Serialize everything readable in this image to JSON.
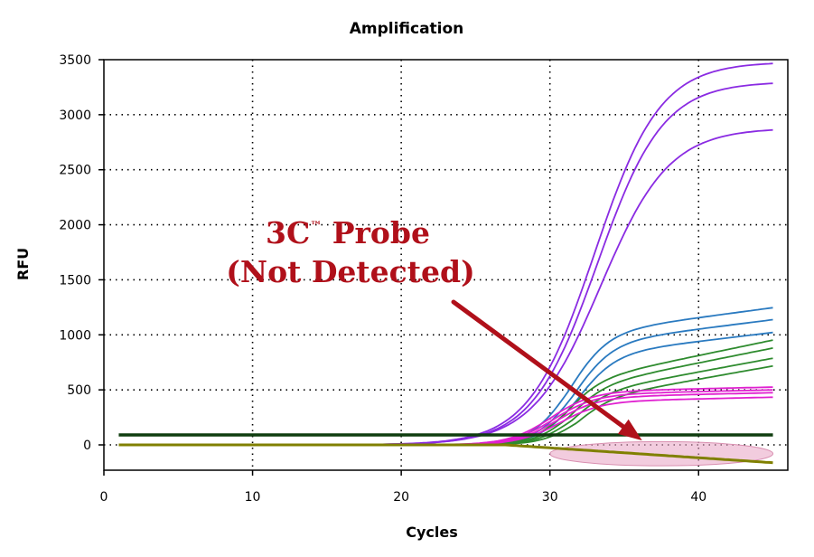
{
  "chart_data": {
    "type": "line",
    "title": "Amplification",
    "xlabel": "Cycles",
    "ylabel": "RFU",
    "xlim": [
      0,
      46
    ],
    "ylim": [
      -230,
      3500
    ],
    "xticks": [
      0,
      10,
      20,
      30,
      40
    ],
    "yticks": [
      0,
      500,
      1000,
      1500,
      2000,
      2500,
      3000,
      3500
    ],
    "grid": true,
    "threshold": {
      "value": 90,
      "color": "#0f3d0f"
    },
    "annotation": {
      "line1_main": "3C",
      "line1_sup": "™",
      "line1_rest": " Probe",
      "line2": "(Not Detected)",
      "color": "#b0101a",
      "arrow_to": {
        "x": 36.2,
        "y": 40
      }
    },
    "highlight": {
      "x_from": 30,
      "x_to": 45,
      "y_center": -80,
      "y_half_height": 110,
      "color": "#e8a3c3"
    },
    "series": [
      {
        "name": "purple-1",
        "color": "#8a2be2",
        "plateau": 3480,
        "midpoint": 33.0,
        "slope": 2.2,
        "drift": 0
      },
      {
        "name": "purple-2",
        "color": "#8a2be2",
        "plateau": 3300,
        "midpoint": 33.2,
        "slope": 2.2,
        "drift": 0
      },
      {
        "name": "purple-3",
        "color": "#8a2be2",
        "plateau": 2880,
        "midpoint": 33.4,
        "slope": 2.3,
        "drift": 0
      },
      {
        "name": "blue-1",
        "color": "#2a7ac0",
        "plateau": 1000,
        "midpoint": 31.3,
        "slope": 1.3,
        "drift": 18
      },
      {
        "name": "blue-2",
        "color": "#2a7ac0",
        "plateau": 910,
        "midpoint": 31.6,
        "slope": 1.3,
        "drift": 17
      },
      {
        "name": "blue-3",
        "color": "#2a7ac0",
        "plateau": 810,
        "midpoint": 31.8,
        "slope": 1.3,
        "drift": 16
      },
      {
        "name": "green-1",
        "color": "#2e8b2e",
        "plateau": 560,
        "midpoint": 31.0,
        "slope": 1.2,
        "drift": 28
      },
      {
        "name": "green-2",
        "color": "#2e8b2e",
        "plateau": 510,
        "midpoint": 31.3,
        "slope": 1.2,
        "drift": 27
      },
      {
        "name": "green-3",
        "color": "#2e8b2e",
        "plateau": 450,
        "midpoint": 31.5,
        "slope": 1.2,
        "drift": 25
      },
      {
        "name": "green-4",
        "color": "#2e8b2e",
        "plateau": 400,
        "midpoint": 31.8,
        "slope": 1.2,
        "drift": 24
      },
      {
        "name": "magenta-1",
        "color": "#e020d0",
        "plateau": 480,
        "midpoint": 30.0,
        "slope": 1.4,
        "drift": 3
      },
      {
        "name": "magenta-2",
        "color": "#e020d0",
        "plateau": 455,
        "midpoint": 30.2,
        "slope": 1.4,
        "drift": 3
      },
      {
        "name": "magenta-3",
        "color": "#e020d0",
        "plateau": 430,
        "midpoint": 30.4,
        "slope": 1.4,
        "drift": 3
      },
      {
        "name": "magenta-4",
        "color": "#e020d0",
        "plateau": 390,
        "midpoint": 30.6,
        "slope": 1.4,
        "drift": 3
      },
      {
        "name": "3c-probe",
        "color": "#808000",
        "plateau": 0,
        "midpoint": 0,
        "slope": 1,
        "drift": -9,
        "drift_start": 27
      }
    ]
  }
}
